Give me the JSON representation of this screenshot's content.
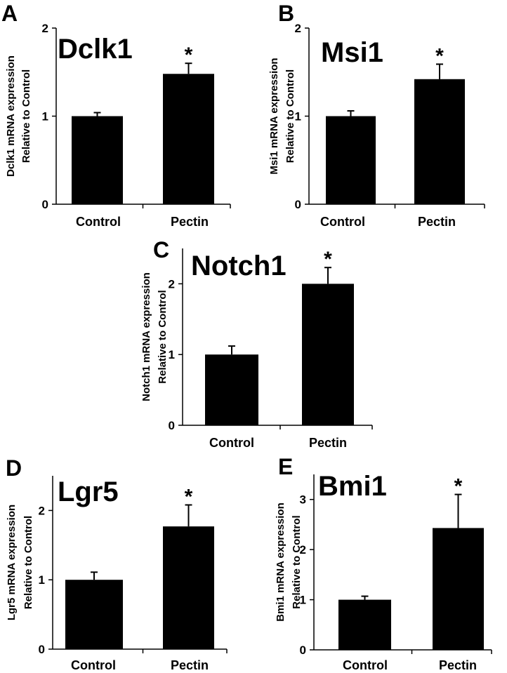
{
  "chart_data": [
    {
      "panel": "A",
      "type": "bar",
      "title": "Dclk1",
      "ylabel": [
        "Dclk1 mRNA expression",
        "Relative to Control"
      ],
      "categories": [
        "Control",
        "Pectin"
      ],
      "values": [
        1.0,
        1.48
      ],
      "errors": [
        0.04,
        0.12
      ],
      "significance": [
        "",
        "*"
      ],
      "ylim": [
        0,
        2
      ],
      "yticks": [
        "0",
        "1",
        "2"
      ],
      "yticks_values": [
        0,
        1,
        2
      ],
      "bar_color": "#000000"
    },
    {
      "panel": "B",
      "type": "bar",
      "title": "Msi1",
      "ylabel": [
        "Msi1 mRNA expression",
        "Relative to Control"
      ],
      "categories": [
        "Control",
        "Pectin"
      ],
      "values": [
        1.0,
        1.42
      ],
      "errors": [
        0.06,
        0.17
      ],
      "significance": [
        "",
        "*"
      ],
      "ylim": [
        0,
        2
      ],
      "yticks": [
        "0",
        "1",
        "2"
      ],
      "yticks_values": [
        0,
        1,
        2
      ],
      "bar_color": "#000000"
    },
    {
      "panel": "C",
      "type": "bar",
      "title": "Notch1",
      "ylabel": [
        "Notch1 mRNA expression",
        "Relative to Control"
      ],
      "categories": [
        "Control",
        "Pectin"
      ],
      "values": [
        1.0,
        2.0
      ],
      "errors": [
        0.12,
        0.23
      ],
      "significance": [
        "",
        "*"
      ],
      "ylim": [
        0,
        2.5
      ],
      "yticks": [
        "0",
        "1",
        "2"
      ],
      "yticks_values": [
        0,
        1,
        2
      ],
      "bar_color": "#000000"
    },
    {
      "panel": "D",
      "type": "bar",
      "title": "Lgr5",
      "ylabel": [
        "Lgr5 mRNA expression",
        "Relative to Control"
      ],
      "categories": [
        "Control",
        "Pectin"
      ],
      "values": [
        1.0,
        1.77
      ],
      "errors": [
        0.11,
        0.31
      ],
      "significance": [
        "",
        "*"
      ],
      "ylim": [
        0,
        2.5
      ],
      "yticks": [
        "0",
        "1",
        "2"
      ],
      "yticks_values": [
        0,
        1,
        2
      ],
      "bar_color": "#000000"
    },
    {
      "panel": "E",
      "type": "bar",
      "title": "Bmi1",
      "ylabel": [
        "Bmi1 mRNA expression",
        "Relative to Control"
      ],
      "categories": [
        "Control",
        "Pectin"
      ],
      "values": [
        1.0,
        2.43
      ],
      "errors": [
        0.07,
        0.67
      ],
      "significance": [
        "",
        "*"
      ],
      "ylim": [
        0,
        3.5
      ],
      "yticks": [
        "0",
        "1",
        "2",
        "3"
      ],
      "yticks_values": [
        0,
        1,
        2,
        3
      ],
      "bar_color": "#000000"
    }
  ]
}
